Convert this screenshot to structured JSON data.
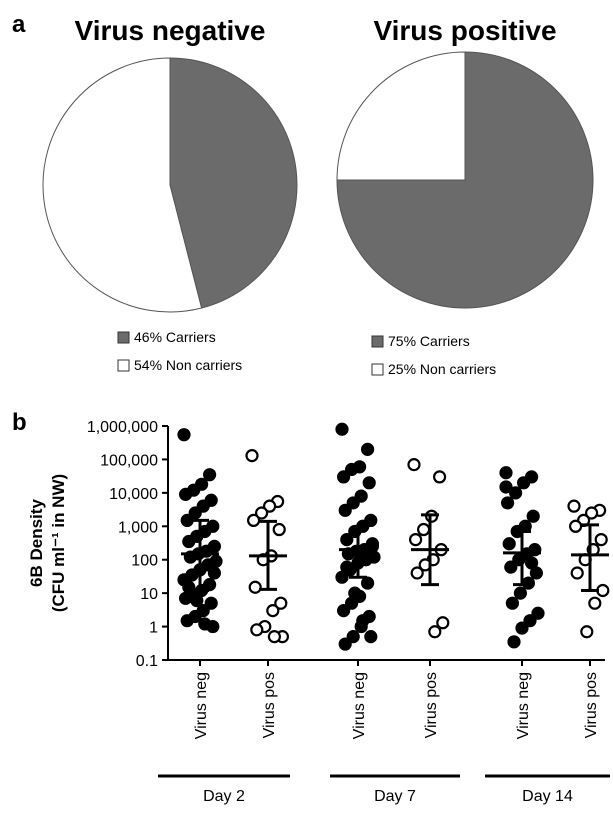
{
  "chart_data": [
    {
      "type": "pie",
      "panel": "a",
      "title": "Virus negative",
      "categories": [
        "Carriers",
        "Non carriers"
      ],
      "values": [
        46,
        54
      ],
      "value_labels": [
        "46%",
        "54%"
      ],
      "colors": [
        "#6b6b6b",
        "#ffffff"
      ]
    },
    {
      "type": "pie",
      "title": "Virus positive",
      "categories": [
        "Carriers",
        "Non carriers"
      ],
      "values": [
        75,
        25
      ],
      "value_labels": [
        "75%",
        "25%"
      ],
      "colors": [
        "#6b6b6b",
        "#ffffff"
      ]
    },
    {
      "type": "dotplot",
      "panel": "b",
      "ylabel": [
        "6B Density",
        "(CFU ml⁻¹ in NW)"
      ],
      "categories": [
        "Virus neg",
        "Virus pos",
        "Virus neg",
        "Virus pos",
        "Virus neg",
        "Virus pos"
      ],
      "group_labels": [
        "Day 2",
        "Day 7",
        "Day 14"
      ],
      "markers": [
        "filled",
        "open",
        "filled",
        "open",
        "filled",
        "open"
      ],
      "log_y": true,
      "ylim": [
        0.1,
        1000000
      ],
      "yticks": [
        0.1,
        1,
        10,
        100,
        {
          "value": 1000,
          "label": "1,000"
        },
        {
          "value": 10000,
          "label": "10,000"
        },
        {
          "value": 100000,
          "label": "100,000"
        },
        {
          "value": 1000000,
          "label": "1,000,000"
        }
      ],
      "values": [
        [
          550000,
          35000,
          18000,
          12000,
          9000,
          6000,
          4000,
          2500,
          1500,
          1000,
          700,
          500,
          350,
          250,
          180,
          150,
          120,
          90,
          70,
          50,
          35,
          25,
          18,
          12,
          9,
          7,
          5,
          3,
          2,
          1.5,
          1,
          1.2,
          6,
          15,
          40
        ],
        [
          130000,
          5500,
          4000,
          2500,
          1500,
          800,
          130,
          100,
          15,
          5,
          3,
          1,
          0.8,
          0.5,
          0.5
        ],
        [
          800000,
          200000,
          60000,
          50000,
          30000,
          20000,
          8000,
          5000,
          3000,
          1500,
          1000,
          700,
          400,
          300,
          200,
          180,
          150,
          120,
          100,
          80,
          50,
          30,
          20,
          8,
          5,
          3,
          2,
          1,
          0.5,
          0.3,
          0.5,
          1.5,
          10,
          60,
          250
        ],
        [
          70000,
          30000,
          2000,
          800,
          400,
          200,
          100,
          70,
          40,
          1.3,
          0.7
        ],
        [
          40000,
          30000,
          20000,
          10000,
          5000,
          2000,
          1000,
          700,
          300,
          200,
          150,
          100,
          60,
          40,
          20,
          10,
          5,
          2.5,
          1.5,
          0.9,
          0.35,
          15000,
          80
        ],
        [
          4000,
          3000,
          2500,
          1500,
          1000,
          400,
          200,
          100,
          40,
          12,
          5,
          0.7
        ]
      ],
      "medians": [
        150,
        130,
        200,
        200,
        160,
        140
      ],
      "error_low": [
        12,
        13,
        30,
        18,
        18,
        12
      ],
      "error_high": [
        1500,
        1400,
        800,
        2200,
        700,
        1100
      ]
    }
  ]
}
